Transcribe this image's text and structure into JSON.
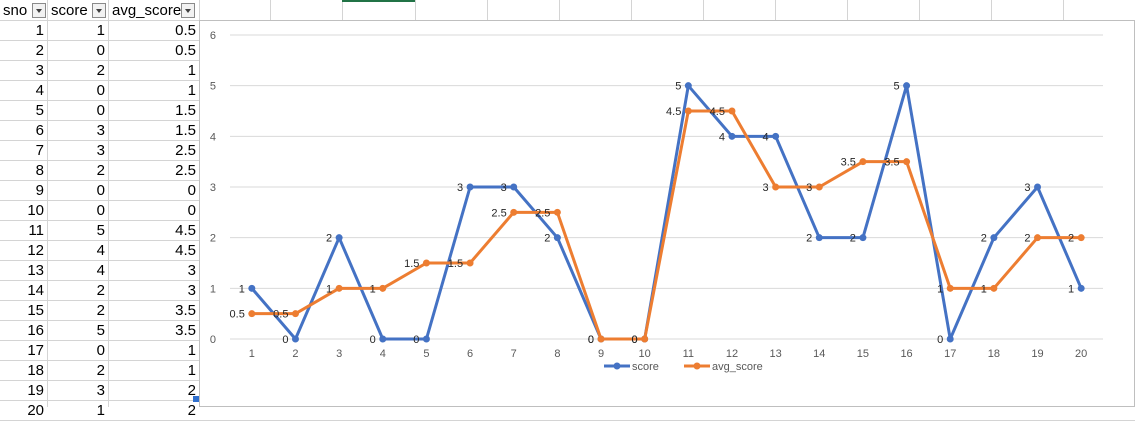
{
  "sheet": {
    "headers": [
      "sno",
      "score",
      "avg_score"
    ],
    "rows": [
      [
        "1",
        "1",
        "0.5"
      ],
      [
        "2",
        "0",
        "0.5"
      ],
      [
        "3",
        "2",
        "1"
      ],
      [
        "4",
        "0",
        "1"
      ],
      [
        "5",
        "0",
        "1.5"
      ],
      [
        "6",
        "3",
        "1.5"
      ],
      [
        "7",
        "3",
        "2.5"
      ],
      [
        "8",
        "2",
        "2.5"
      ],
      [
        "9",
        "0",
        "0"
      ],
      [
        "10",
        "0",
        "0"
      ],
      [
        "11",
        "5",
        "4.5"
      ],
      [
        "12",
        "4",
        "4.5"
      ],
      [
        "13",
        "4",
        "3"
      ],
      [
        "14",
        "2",
        "3"
      ],
      [
        "15",
        "2",
        "3.5"
      ],
      [
        "16",
        "5",
        "3.5"
      ],
      [
        "17",
        "0",
        "1"
      ],
      [
        "18",
        "2",
        "1"
      ],
      [
        "19",
        "3",
        "2"
      ],
      [
        "20",
        "1",
        "2"
      ]
    ]
  },
  "chart_data": {
    "type": "line",
    "x": [
      1,
      2,
      3,
      4,
      5,
      6,
      7,
      8,
      9,
      10,
      11,
      12,
      13,
      14,
      15,
      16,
      17,
      18,
      19,
      20
    ],
    "ylim": [
      0,
      6
    ],
    "yticks": [
      0,
      1,
      2,
      3,
      4,
      5,
      6
    ],
    "grid": true,
    "legend_position": "bottom",
    "series": [
      {
        "name": "score",
        "color": "#4472c4",
        "values": [
          1,
          0,
          2,
          0,
          0,
          3,
          3,
          2,
          0,
          0,
          5,
          4,
          4,
          2,
          2,
          5,
          0,
          2,
          3,
          1
        ]
      },
      {
        "name": "avg_score",
        "color": "#ed7d31",
        "values": [
          0.5,
          0.5,
          1,
          1,
          1.5,
          1.5,
          2.5,
          2.5,
          0,
          0,
          4.5,
          4.5,
          3,
          3,
          3.5,
          3.5,
          1,
          1,
          2,
          2
        ]
      }
    ]
  }
}
